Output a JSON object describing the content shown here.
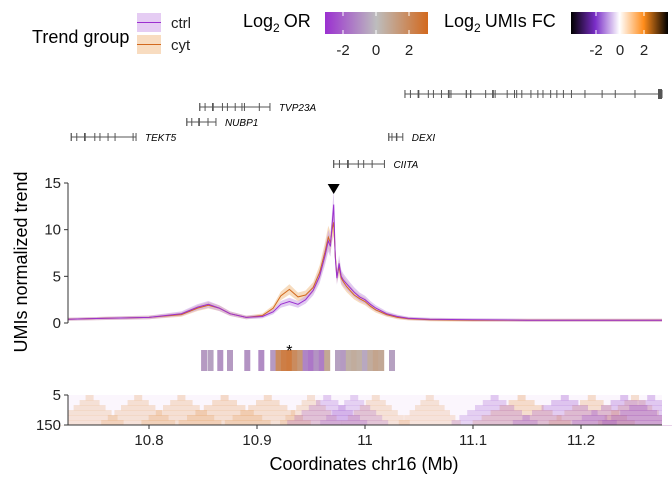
{
  "chart_data": {
    "type": "line",
    "xlabel": "Coordinates chr16 (Mb)",
    "ylabel": "UMIs normalized trend",
    "x_range": [
      10.725,
      11.275
    ],
    "x_ticks": [
      10.8,
      10.9,
      11,
      11.1,
      11.2
    ],
    "x_tick_labels": [
      "10.8",
      "10.9",
      "11",
      "11.1",
      "11.2"
    ],
    "ylim": [
      0,
      15
    ],
    "y_ticks": [
      0,
      5,
      10,
      15
    ],
    "y_tick_labels": [
      "0",
      "5",
      "10",
      "15"
    ],
    "grid": false,
    "series": [
      {
        "name": "ctrl",
        "color": "#9b30d0",
        "ribbon_color": "#c9a0e6",
        "x": [
          10.725,
          10.76,
          10.8,
          10.83,
          10.845,
          10.855,
          10.865,
          10.875,
          10.89,
          10.905,
          10.915,
          10.922,
          10.93,
          10.938,
          10.945,
          10.952,
          10.958,
          10.963,
          10.966,
          10.968,
          10.9695,
          10.971,
          10.9725,
          10.974,
          10.976,
          10.978,
          10.98,
          10.983,
          10.986,
          10.99,
          10.995,
          11.0,
          11.005,
          11.01,
          11.02,
          11.03,
          11.04,
          11.06,
          11.1,
          11.15,
          11.2,
          11.275
        ],
        "y": [
          0.4,
          0.5,
          0.6,
          1.0,
          1.7,
          2.0,
          1.6,
          1.0,
          0.6,
          0.7,
          1.2,
          2.0,
          2.3,
          2.0,
          2.5,
          3.5,
          5.0,
          7.2,
          8.8,
          8.2,
          10.5,
          12.7,
          7.0,
          4.8,
          6.4,
          5.0,
          4.6,
          4.2,
          3.8,
          3.3,
          2.8,
          2.5,
          2.0,
          1.6,
          1.0,
          0.7,
          0.5,
          0.4,
          0.35,
          0.3,
          0.3,
          0.3
        ]
      },
      {
        "name": "cyt",
        "color": "#d2691e",
        "ribbon_color": "#f0c08a",
        "x": [
          10.725,
          10.76,
          10.8,
          10.83,
          10.845,
          10.855,
          10.865,
          10.875,
          10.89,
          10.905,
          10.915,
          10.922,
          10.93,
          10.938,
          10.945,
          10.952,
          10.958,
          10.963,
          10.966,
          10.968,
          10.9695,
          10.971,
          10.9725,
          10.974,
          10.976,
          10.978,
          10.98,
          10.983,
          10.986,
          10.99,
          10.995,
          11.0,
          11.005,
          11.01,
          11.02,
          11.03,
          11.04,
          11.06,
          11.1,
          11.15,
          11.2,
          11.275
        ],
        "y": [
          0.4,
          0.5,
          0.6,
          0.9,
          1.6,
          1.9,
          1.6,
          1.0,
          0.6,
          0.8,
          1.6,
          2.9,
          3.6,
          2.8,
          3.0,
          3.8,
          5.4,
          7.6,
          9.2,
          8.6,
          10.0,
          10.8,
          7.2,
          5.0,
          6.0,
          4.8,
          4.4,
          3.9,
          3.5,
          3.0,
          2.6,
          2.3,
          1.8,
          1.4,
          0.9,
          0.6,
          0.45,
          0.35,
          0.3,
          0.3,
          0.3,
          0.3
        ]
      }
    ],
    "marker_top": {
      "x": 10.971,
      "shape": "triangle-down"
    },
    "marker_star": {
      "x": 10.93,
      "label": "*"
    },
    "or_bins": [
      {
        "x": 10.851,
        "v": -0.5
      },
      {
        "x": 10.857,
        "v": -0.4
      },
      {
        "x": 10.866,
        "v": -0.6
      },
      {
        "x": 10.875,
        "v": -0.5
      },
      {
        "x": 10.891,
        "v": -0.6
      },
      {
        "x": 10.904,
        "v": -0.7
      },
      {
        "x": 10.915,
        "v": -0.5
      },
      {
        "x": 10.92,
        "v": 1.2
      },
      {
        "x": 10.925,
        "v": 1.5
      },
      {
        "x": 10.93,
        "v": 1.6
      },
      {
        "x": 10.935,
        "v": 1.2
      },
      {
        "x": 10.94,
        "v": 0.9
      },
      {
        "x": 10.945,
        "v": -0.8
      },
      {
        "x": 10.95,
        "v": -1.0
      },
      {
        "x": 10.955,
        "v": -0.6
      },
      {
        "x": 10.96,
        "v": -0.9
      },
      {
        "x": 10.965,
        "v": 0.5
      },
      {
        "x": 10.975,
        "v": -0.4
      },
      {
        "x": 10.98,
        "v": -0.5
      },
      {
        "x": 10.985,
        "v": 0.3
      },
      {
        "x": 10.99,
        "v": 0.4
      },
      {
        "x": 10.995,
        "v": 0.3
      },
      {
        "x": 11.0,
        "v": -0.3
      },
      {
        "x": 11.005,
        "v": 0.4
      },
      {
        "x": 11.01,
        "v": 0.6
      },
      {
        "x": 11.015,
        "v": 0.5
      },
      {
        "x": 11.025,
        "v": -0.4
      }
    ],
    "heatmap": {
      "y_tick_labels": [
        "5",
        "150"
      ],
      "value_range": [
        -3,
        3
      ]
    },
    "genes": [
      {
        "name": "TEKT5",
        "start": 10.728,
        "end": 10.788,
        "row": 1
      },
      {
        "name": "NUBP1",
        "start": 10.835,
        "end": 10.862,
        "row": 2
      },
      {
        "name": "TVP23A",
        "start": 10.847,
        "end": 10.912,
        "row": 3
      },
      {
        "name": "CIITA",
        "start": 10.971,
        "end": 11.018,
        "row": 0
      },
      {
        "name": "DEXI",
        "start": 11.022,
        "end": 11.035,
        "row": 1
      },
      {
        "name": "",
        "start": 11.037,
        "end": 11.275,
        "row": 4
      }
    ]
  },
  "legend": {
    "trend_group": {
      "title": "Trend group",
      "items": [
        {
          "label": "ctrl",
          "color": "#9b30d0",
          "fill": "#e5ccf3"
        },
        {
          "label": "cyt",
          "color": "#d2691e",
          "fill": "#f8dcc0"
        }
      ]
    },
    "log2_or": {
      "title": "OR",
      "title_prefix": "Log",
      "subscript": "2",
      "ticks": [
        "-2",
        "0",
        "2"
      ]
    },
    "log2_umis_fc": {
      "title": "UMIs FC",
      "title_prefix": "Log",
      "subscript": "2",
      "ticks": [
        "-2",
        "0",
        "2"
      ]
    }
  }
}
